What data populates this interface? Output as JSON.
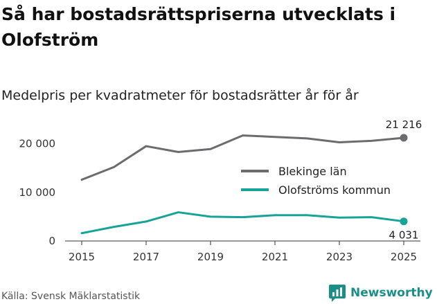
{
  "header": {
    "title": "Så har bostadsrättspriserna utvecklats i Olofström",
    "subtitle": "Medelpris per kvadratmeter för bostadsrätter år för år"
  },
  "footer": {
    "source": "Källa: Svensk Mäklarstatistik",
    "brand": "Newsworthy",
    "brand_color": "#1a8f87"
  },
  "chart_data": {
    "type": "line",
    "x": [
      2015,
      2016,
      2017,
      2018,
      2019,
      2020,
      2021,
      2022,
      2023,
      2024,
      2025
    ],
    "series": [
      {
        "name": "Blekinge län",
        "color": "#6b6b70",
        "values": [
          12600,
          15200,
          19500,
          18300,
          18900,
          21700,
          21400,
          21100,
          20300,
          20600,
          21216
        ],
        "end_label": "21 216"
      },
      {
        "name": "Olofströms kommun",
        "color": "#17a398",
        "values": [
          1600,
          2900,
          4000,
          5900,
          5000,
          4900,
          5300,
          5300,
          4800,
          4900,
          4031
        ],
        "end_label": "4 031"
      }
    ],
    "x_ticks": [
      2015,
      2017,
      2019,
      2021,
      2023,
      2025
    ],
    "x_tick_labels": [
      "2015",
      "2017",
      "2019",
      "2021",
      "2023",
      "2025"
    ],
    "y_ticks": [
      0,
      10000,
      20000
    ],
    "y_tick_labels": [
      "0",
      "10 000",
      "20 000"
    ],
    "ylim": [
      0,
      22500
    ],
    "xlim": [
      2015,
      2025
    ],
    "legend_position": "right-center",
    "grid": false
  }
}
